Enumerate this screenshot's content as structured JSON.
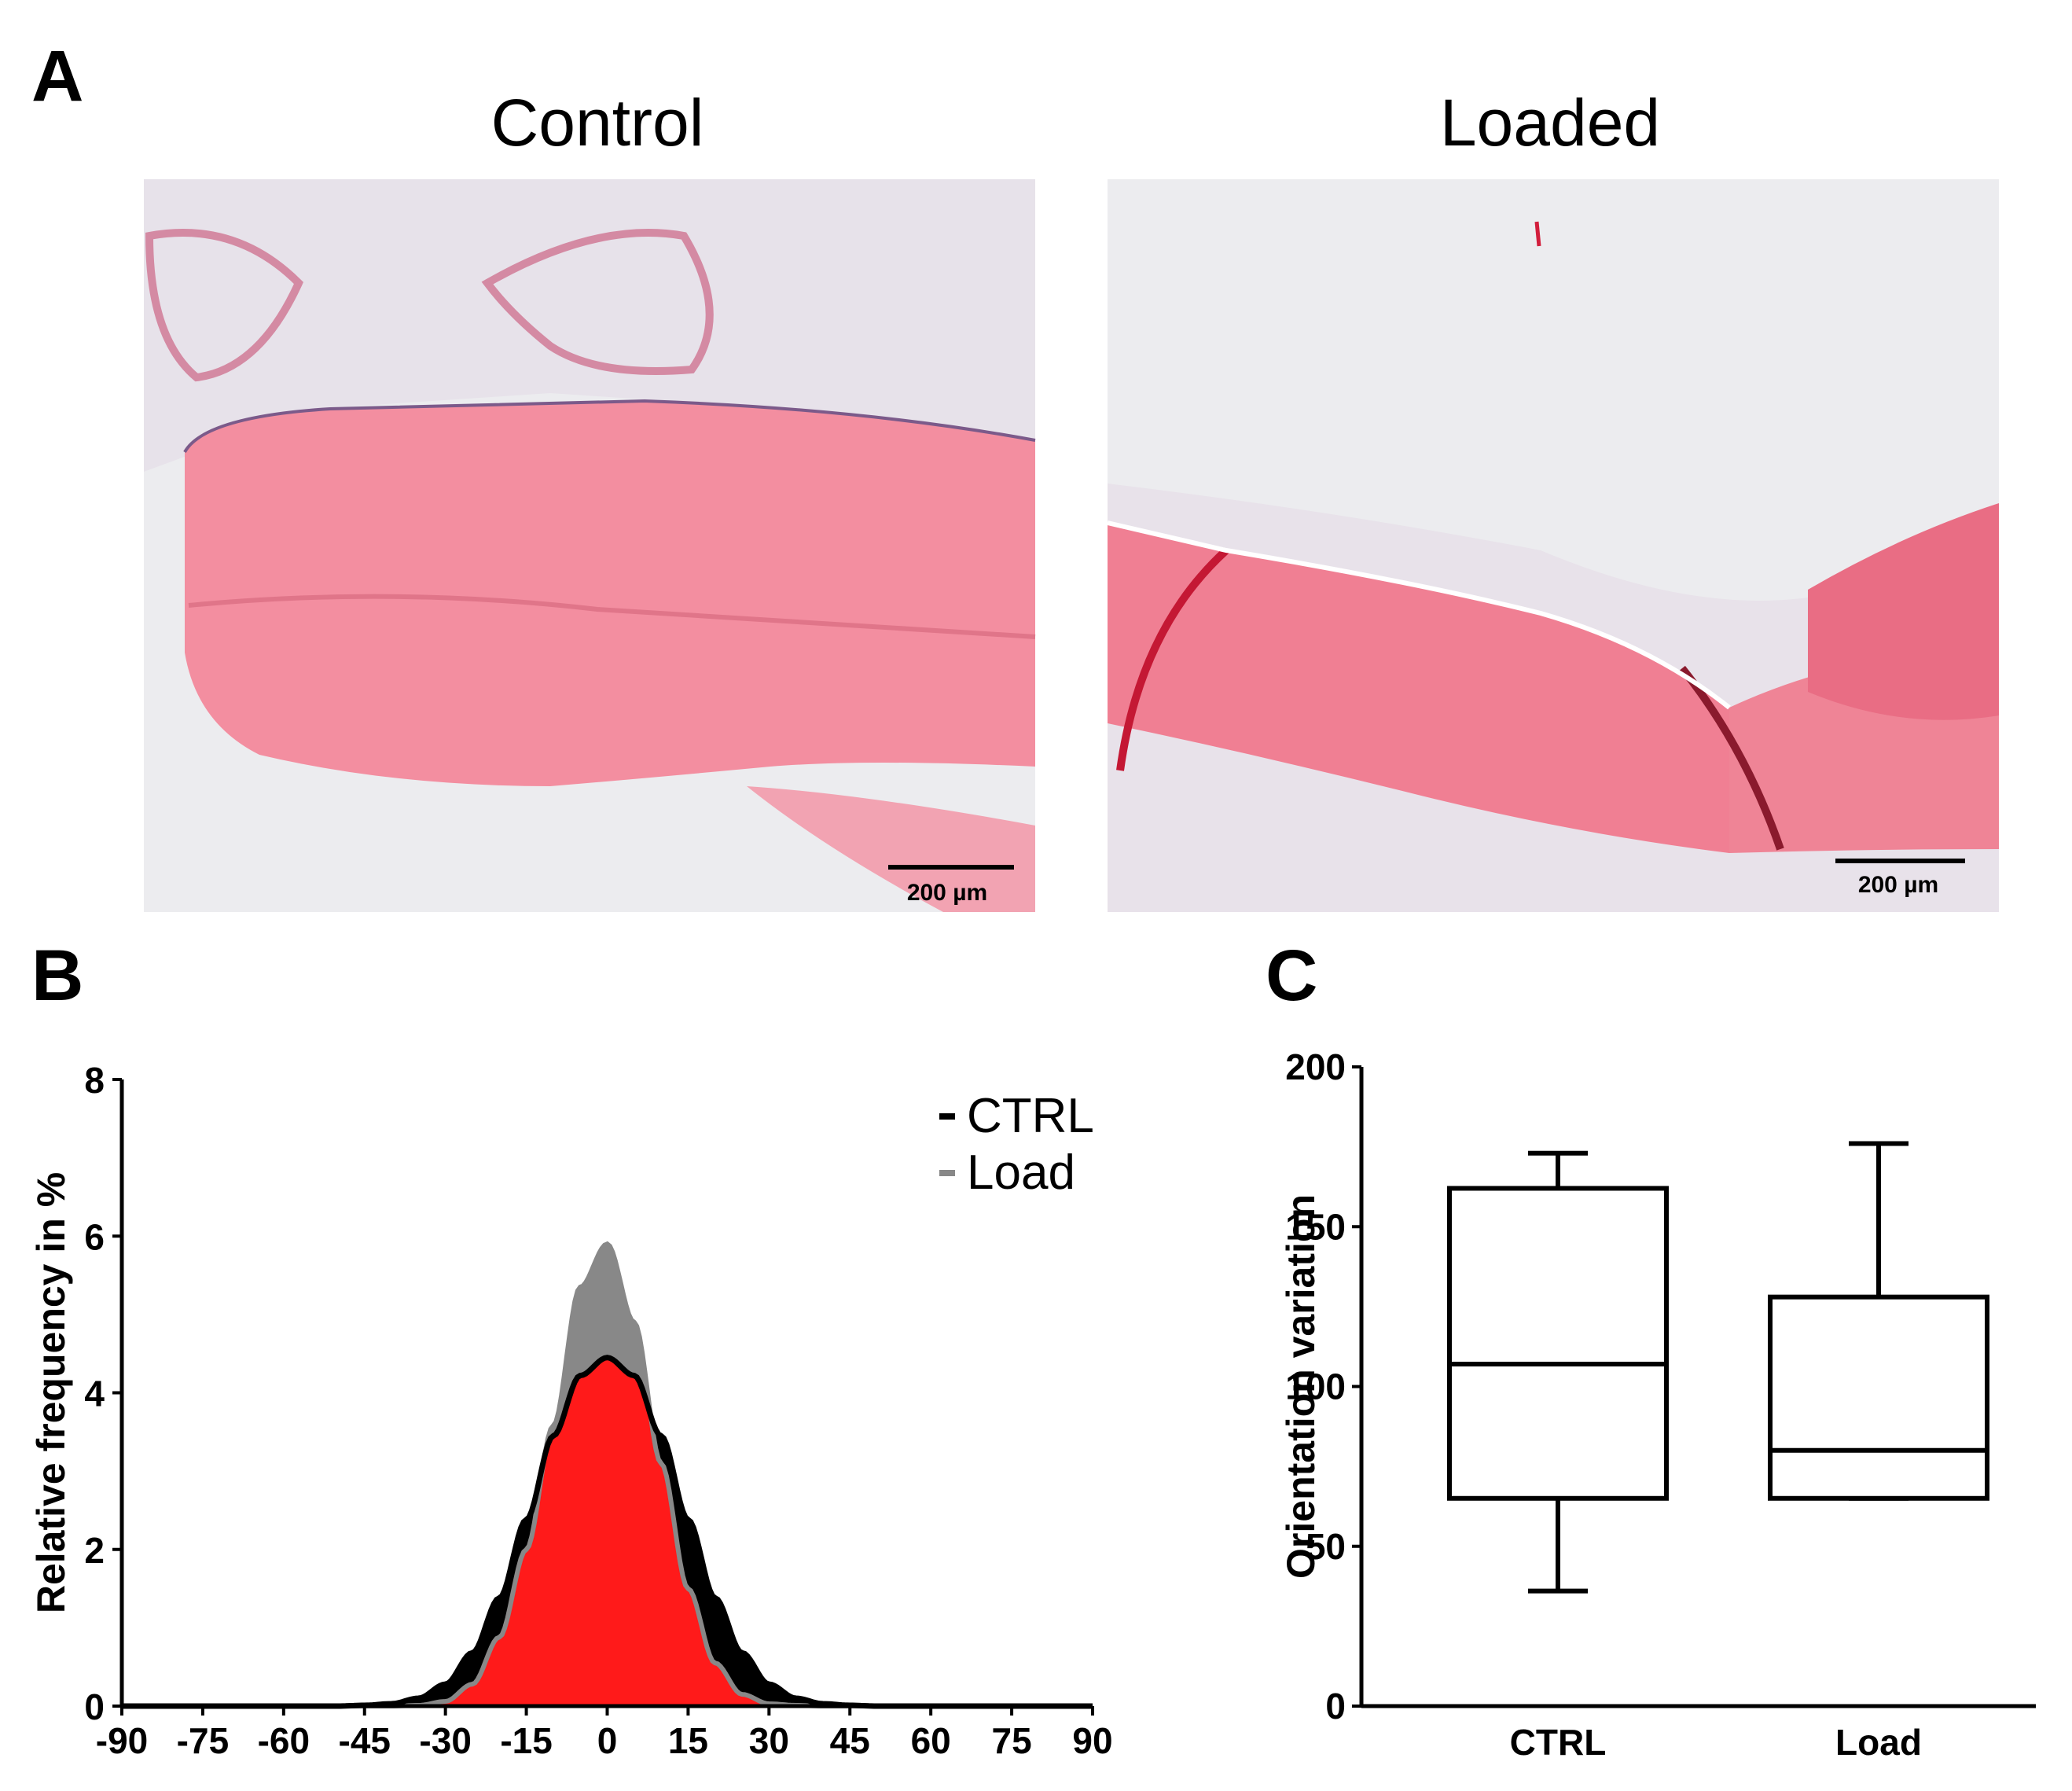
{
  "panels": {
    "a": {
      "letter": "A",
      "left": {
        "title": "Control",
        "scale_bar_label": "200 µm"
      },
      "right": {
        "title": "Loaded",
        "scale_bar_label": "200 µm"
      }
    },
    "b": {
      "letter": "B"
    },
    "c": {
      "letter": "C"
    }
  },
  "colors": {
    "ctrl": "#000000",
    "load": "#888888",
    "overlap": "#ff1a1a",
    "tissue": "#f07f93",
    "tissue_dark": "#d21e3c",
    "background_slide": "#ededf0"
  },
  "chart_data": [
    {
      "type": "area",
      "panel": "B",
      "xlabel": "",
      "ylabel": "Relative frequency in %",
      "xlim": [
        -90,
        90
      ],
      "ylim": [
        0,
        8
      ],
      "xticks": [
        "-90",
        "-75",
        "-60",
        "-45",
        "-30",
        "-15",
        "0",
        "15",
        "30",
        "45",
        "60",
        "75",
        "90"
      ],
      "yticks": [
        "0",
        "2",
        "4",
        "6",
        "8"
      ],
      "legend": "top-right",
      "series": [
        {
          "name": "CTRL",
          "x": [
            -90,
            -80,
            -70,
            -60,
            -50,
            -45,
            -40,
            -35,
            -30,
            -25,
            -20,
            -15,
            -10,
            -5,
            0,
            5,
            10,
            15,
            20,
            25,
            30,
            35,
            40,
            45,
            50,
            60,
            70,
            80,
            90
          ],
          "values": [
            0,
            0,
            0,
            0,
            0,
            0.01,
            0.03,
            0.1,
            0.28,
            0.68,
            1.38,
            2.38,
            3.45,
            4.22,
            4.45,
            4.22,
            3.45,
            2.38,
            1.38,
            0.68,
            0.28,
            0.1,
            0.03,
            0.01,
            0,
            0,
            0,
            0,
            0
          ]
        },
        {
          "name": "Load",
          "x": [
            -90,
            -80,
            -70,
            -60,
            -50,
            -45,
            -40,
            -35,
            -30,
            -25,
            -20,
            -15,
            -10,
            -5,
            0,
            5,
            10,
            15,
            20,
            25,
            30,
            35,
            40,
            45,
            50,
            60,
            70,
            80,
            90
          ],
          "values": [
            0,
            0,
            0,
            0,
            0,
            0,
            0,
            0.01,
            0.06,
            0.28,
            0.88,
            2.0,
            3.58,
            5.35,
            5.9,
            4.9,
            3.1,
            1.5,
            0.55,
            0.15,
            0.03,
            0.01,
            0,
            0,
            0,
            0,
            0,
            0,
            0
          ]
        }
      ]
    },
    {
      "type": "box",
      "panel": "C",
      "xlabel": "",
      "ylabel": "Orientation variation",
      "ylim": [
        0,
        200
      ],
      "yticks": [
        "0",
        "50",
        "100",
        "150",
        "200"
      ],
      "categories": [
        "CTRL",
        "Load"
      ],
      "boxes": [
        {
          "name": "CTRL",
          "min": 36,
          "q1": 65,
          "median": 107,
          "q3": 162,
          "max": 173
        },
        {
          "name": "Load",
          "min": 65,
          "q1": 65,
          "median": 80,
          "q3": 128,
          "max": 176
        }
      ]
    }
  ]
}
